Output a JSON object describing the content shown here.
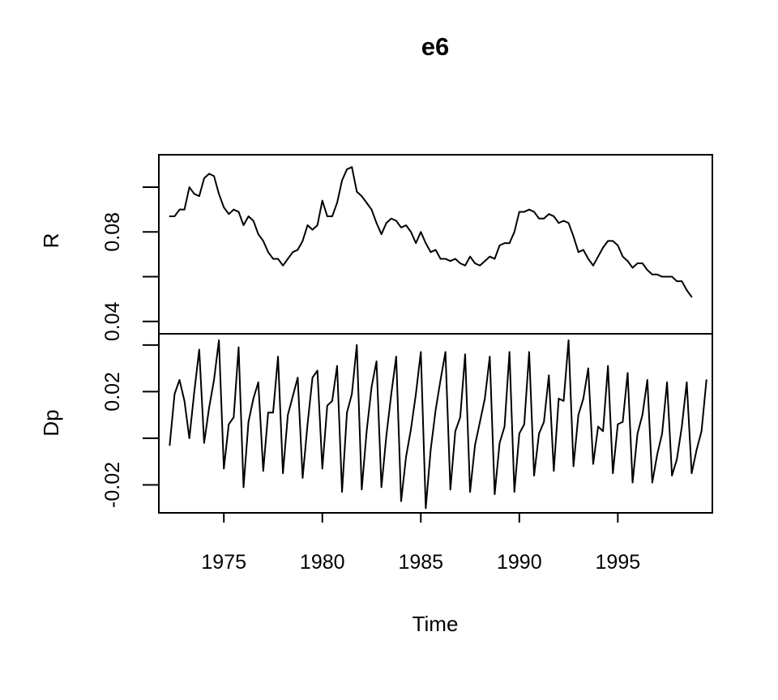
{
  "chart_data": {
    "type": "line",
    "title": "e6",
    "xlabel": "Time",
    "xlim": [
      1971.7,
      1999.8
    ],
    "x_ticks": [
      "1975",
      "1980",
      "1985",
      "1990",
      "1995"
    ],
    "x_tick_values": [
      1975,
      1980,
      1985,
      1990,
      1995
    ],
    "x_start": 1972.25,
    "x_step": 0.25,
    "grid": false,
    "legend": "none",
    "panels": [
      {
        "name": "R",
        "ylabel": "R",
        "ylim": [
          0.0345,
          0.1145
        ],
        "y_ticks": [
          "",
          "0.08",
          "",
          "0.04"
        ],
        "y_tick_values": [
          0.1,
          0.08,
          0.06,
          0.04
        ],
        "values": [
          0.087,
          0.087,
          0.09,
          0.09,
          0.1,
          0.097,
          0.096,
          0.104,
          0.106,
          0.105,
          0.097,
          0.091,
          0.088,
          0.09,
          0.089,
          0.083,
          0.087,
          0.085,
          0.079,
          0.076,
          0.071,
          0.068,
          0.068,
          0.065,
          0.068,
          0.071,
          0.072,
          0.076,
          0.083,
          0.081,
          0.083,
          0.094,
          0.087,
          0.087,
          0.093,
          0.103,
          0.108,
          0.109,
          0.098,
          0.096,
          0.093,
          0.09,
          0.084,
          0.079,
          0.084,
          0.086,
          0.085,
          0.082,
          0.083,
          0.08,
          0.075,
          0.08,
          0.075,
          0.071,
          0.072,
          0.068,
          0.068,
          0.067,
          0.068,
          0.066,
          0.065,
          0.069,
          0.066,
          0.065,
          0.067,
          0.069,
          0.068,
          0.074,
          0.075,
          0.075,
          0.08,
          0.089,
          0.089,
          0.09,
          0.089,
          0.086,
          0.086,
          0.088,
          0.087,
          0.084,
          0.085,
          0.084,
          0.078,
          0.071,
          0.072,
          0.068,
          0.065,
          0.069,
          0.073,
          0.076,
          0.076,
          0.074,
          0.069,
          0.067,
          0.064,
          0.066,
          0.066,
          0.063,
          0.061,
          0.061,
          0.06,
          0.06,
          0.06,
          0.058,
          0.058,
          0.054,
          0.051
        ]
      },
      {
        "name": "Dp",
        "ylabel": "Dp",
        "ylim": [
          -0.032,
          0.0448
        ],
        "y_ticks": [
          "",
          "0.02",
          "",
          "-0.02"
        ],
        "y_tick_values": [
          0.04,
          0.02,
          0.0,
          -0.02
        ],
        "values": [
          -0.003,
          0.019,
          0.025,
          0.016,
          0.0,
          0.02,
          0.038,
          -0.002,
          0.013,
          0.025,
          0.042,
          -0.013,
          0.006,
          0.009,
          0.039,
          -0.021,
          0.007,
          0.017,
          0.024,
          -0.014,
          0.011,
          0.011,
          0.035,
          -0.015,
          0.01,
          0.018,
          0.026,
          -0.017,
          0.006,
          0.026,
          0.029,
          -0.013,
          0.014,
          0.016,
          0.031,
          -0.023,
          0.011,
          0.019,
          0.04,
          -0.022,
          0.003,
          0.022,
          0.033,
          -0.021,
          0.001,
          0.019,
          0.035,
          -0.027,
          -0.008,
          0.004,
          0.019,
          0.037,
          -0.03,
          -0.005,
          0.012,
          0.025,
          0.037,
          -0.022,
          0.003,
          0.009,
          0.036,
          -0.023,
          -0.003,
          0.007,
          0.017,
          0.035,
          -0.024,
          -0.002,
          0.005,
          0.037,
          -0.023,
          0.002,
          0.006,
          0.037,
          -0.016,
          0.002,
          0.007,
          0.027,
          -0.014,
          0.017,
          0.016,
          0.042,
          -0.012,
          0.01,
          0.017,
          0.03,
          -0.011,
          0.005,
          0.003,
          0.031,
          -0.015,
          0.006,
          0.007,
          0.028,
          -0.019,
          0.002,
          0.01,
          0.025,
          -0.019,
          -0.007,
          0.002,
          0.024,
          -0.016,
          -0.009,
          0.005,
          0.024,
          -0.015,
          -0.005,
          0.003,
          0.025
        ]
      }
    ]
  }
}
